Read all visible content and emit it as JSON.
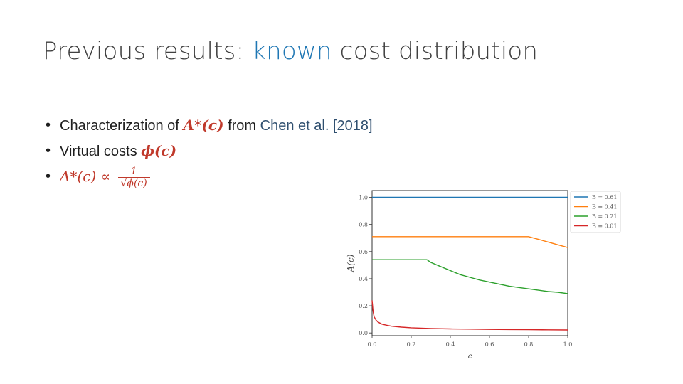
{
  "slide": {
    "title_prefix": "Previous results: ",
    "title_accent": "known",
    "title_suffix": " cost distribution",
    "accent_color": "#1f77b4",
    "math_color": "#c0392b"
  },
  "bullets": {
    "b1_text": "Characterization of ",
    "b1_math": "A*(c)",
    "b1_from": " from ",
    "b1_cite": "Chen et al. [2018]",
    "b2_text": "Virtual costs ",
    "b2_math": "ϕ(c)",
    "b3_math": "A*(c) ∝ ",
    "b3_num": "1",
    "b3_den": "√ϕ(c)",
    "bullet_glyph": "•"
  },
  "chart_data": {
    "type": "line",
    "xlabel": "c",
    "ylabel": "A(c)",
    "xlim": [
      0,
      1
    ],
    "ylim": [
      -0.02,
      1.05
    ],
    "xticks": [
      "0.0",
      "0.2",
      "0.4",
      "0.6",
      "0.8",
      "1.0"
    ],
    "yticks": [
      "0.0",
      "0.2",
      "0.4",
      "0.6",
      "0.8",
      "1.0"
    ],
    "legend_position": "outside-top-right",
    "series": [
      {
        "name": "B = 0.61",
        "color": "#1f77b4",
        "x": [
          0.0,
          1.0
        ],
        "y": [
          1.0,
          1.0
        ]
      },
      {
        "name": "B = 0.41",
        "color": "#ff7f0e",
        "x": [
          0.0,
          0.8,
          0.85,
          0.9,
          0.95,
          1.0
        ],
        "y": [
          0.71,
          0.71,
          0.69,
          0.67,
          0.65,
          0.63
        ]
      },
      {
        "name": "B = 0.21",
        "color": "#2ca02c",
        "x": [
          0.0,
          0.28,
          0.3,
          0.35,
          0.4,
          0.45,
          0.5,
          0.55,
          0.6,
          0.65,
          0.7,
          0.75,
          0.8,
          0.85,
          0.9,
          0.95,
          1.0
        ],
        "y": [
          0.54,
          0.54,
          0.52,
          0.49,
          0.46,
          0.43,
          0.41,
          0.39,
          0.375,
          0.36,
          0.345,
          0.335,
          0.325,
          0.315,
          0.305,
          0.3,
          0.29
        ]
      },
      {
        "name": "B = 0.01",
        "color": "#d62728",
        "x": [
          0.0,
          0.005,
          0.01,
          0.02,
          0.03,
          0.05,
          0.08,
          0.1,
          0.15,
          0.2,
          0.3,
          0.4,
          0.5,
          0.6,
          0.7,
          0.8,
          0.9,
          1.0
        ],
        "y": [
          0.24,
          0.16,
          0.12,
          0.095,
          0.08,
          0.065,
          0.055,
          0.05,
          0.043,
          0.038,
          0.033,
          0.03,
          0.028,
          0.026,
          0.025,
          0.024,
          0.023,
          0.022
        ]
      }
    ]
  }
}
